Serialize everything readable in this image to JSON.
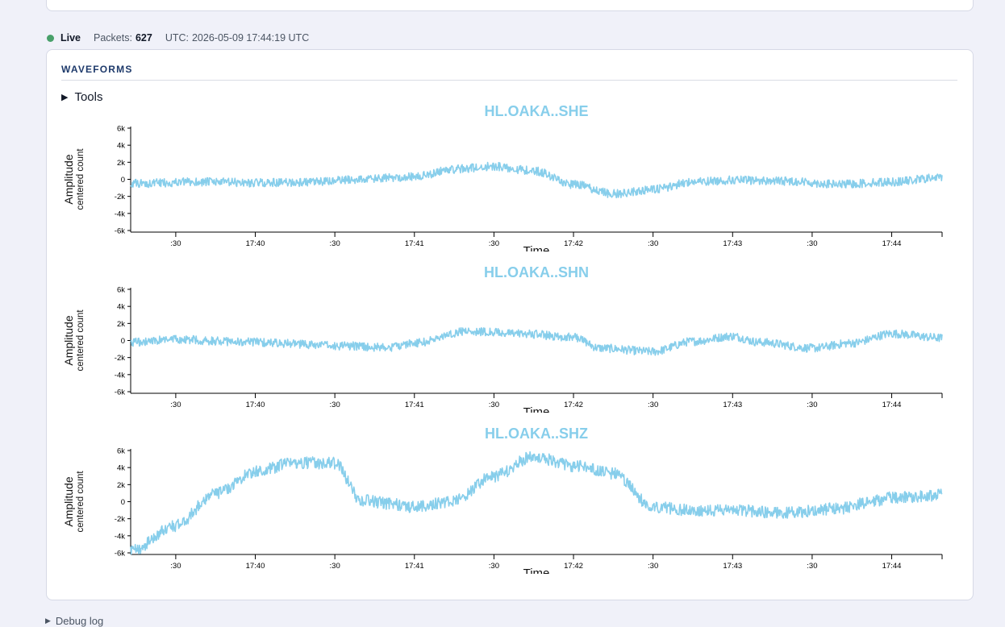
{
  "status": {
    "live_label": "Live",
    "packets_label": "Packets:",
    "packets_value": "627",
    "utc_label": "UTC:",
    "utc_value": "2026-05-09 17:44:19 UTC",
    "live_color": "#48a06a"
  },
  "panel": {
    "title": "WAVEFORMS",
    "tools_label": "Tools",
    "tools_icon": "triangle-right-icon"
  },
  "debug": {
    "label": "Debug log",
    "icon": "triangle-right-icon"
  },
  "chart_data": [
    {
      "type": "line",
      "title": "HL.OAKA..SHE",
      "xlabel": "Time",
      "ylabel": "Amplitude",
      "ylabel2": "centered count",
      "ylim": [
        -6000,
        6000
      ],
      "xlim": [
        "17:39:13",
        "17:44:19"
      ],
      "x_ticks": [
        ":30",
        "17:40",
        ":30",
        "17:41",
        ":30",
        "17:42",
        ":30",
        "17:43",
        ":30",
        "17:44"
      ],
      "y_ticks": [
        "6k",
        "4k",
        "2k",
        "0",
        "-2k",
        "-4k",
        "-6k"
      ],
      "color": "#87ceeb",
      "noise": 500,
      "series": [
        {
          "x": [
            "17:39:13",
            "17:39:40",
            "17:40:00",
            "17:40:20",
            "17:40:40",
            "17:41:00",
            "17:41:15",
            "17:41:30",
            "17:41:45",
            "17:42:00",
            "17:42:15",
            "17:42:30",
            "17:42:45",
            "17:43:00",
            "17:43:20",
            "17:43:40",
            "17:44:00",
            "17:44:19"
          ],
          "values": [
            -500,
            -300,
            -400,
            -350,
            0,
            300,
            1200,
            1500,
            1000,
            -600,
            -1700,
            -1200,
            -300,
            -100,
            -200,
            -600,
            -300,
            200
          ]
        }
      ]
    },
    {
      "type": "line",
      "title": "HL.OAKA..SHN",
      "xlabel": "Time",
      "ylabel": "Amplitude",
      "ylabel2": "centered count",
      "ylim": [
        -6000,
        6000
      ],
      "xlim": [
        "17:39:13",
        "17:44:19"
      ],
      "x_ticks": [
        ":30",
        "17:40",
        ":30",
        "17:41",
        ":30",
        "17:42",
        ":30",
        "17:43",
        ":30",
        "17:44"
      ],
      "y_ticks": [
        "6k",
        "4k",
        "2k",
        "0",
        "-2k",
        "-4k",
        "-6k"
      ],
      "color": "#87ceeb",
      "noise": 500,
      "series": [
        {
          "x": [
            "17:39:13",
            "17:39:30",
            "17:40:00",
            "17:40:30",
            "17:40:50",
            "17:41:00",
            "17:41:20",
            "17:41:40",
            "17:42:00",
            "17:42:10",
            "17:42:30",
            "17:42:45",
            "17:43:00",
            "17:43:10",
            "17:43:30",
            "17:43:45",
            "17:44:00",
            "17:44:19"
          ],
          "values": [
            -200,
            100,
            -200,
            -600,
            -800,
            -300,
            1100,
            800,
            400,
            -900,
            -1300,
            -100,
            500,
            -200,
            -900,
            -300,
            800,
            300
          ]
        }
      ]
    },
    {
      "type": "line",
      "title": "HL.OAKA..SHZ",
      "xlabel": "Time",
      "ylabel": "Amplitude",
      "ylabel2": "centered count",
      "ylim": [
        -6000,
        6000
      ],
      "xlim": [
        "17:39:13",
        "17:44:19"
      ],
      "x_ticks": [
        ":30",
        "17:40",
        ":30",
        "17:41",
        ":30",
        "17:42",
        ":30",
        "17:43",
        ":30",
        "17:44"
      ],
      "y_ticks": [
        "6k",
        "4k",
        "2k",
        "0",
        "-2k",
        "-4k",
        "-6k"
      ],
      "color": "#87ceeb",
      "noise": 700,
      "series": [
        {
          "x": [
            "17:39:13",
            "17:39:30",
            "17:39:45",
            "17:40:00",
            "17:40:15",
            "17:40:30",
            "17:40:40",
            "17:40:50",
            "17:41:00",
            "17:41:15",
            "17:41:30",
            "17:41:45",
            "17:42:00",
            "17:42:15",
            "17:42:30",
            "17:42:45",
            "17:43:00",
            "17:43:20",
            "17:43:40",
            "17:43:50",
            "17:44:00",
            "17:44:19"
          ],
          "values": [
            -5800,
            -2800,
            1000,
            3500,
            4600,
            4500,
            200,
            -200,
            -600,
            100,
            3000,
            5300,
            4200,
            3300,
            -600,
            -1000,
            -1000,
            -1300,
            -800,
            -200,
            500,
            800
          ]
        }
      ]
    }
  ]
}
